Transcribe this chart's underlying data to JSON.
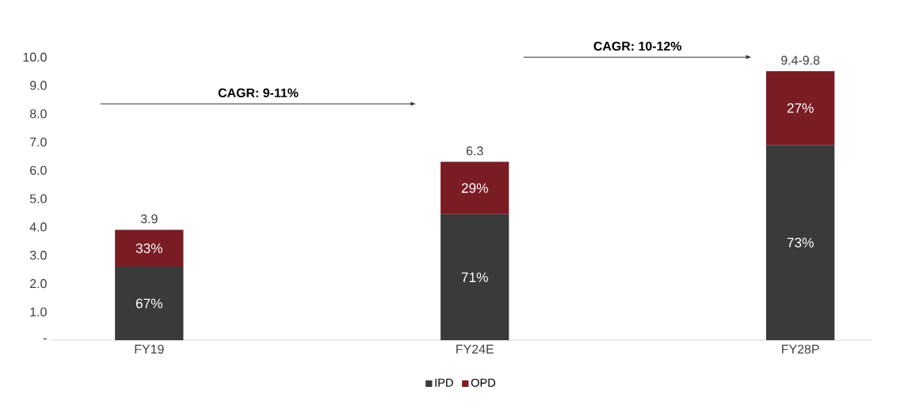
{
  "chart_data": {
    "type": "bar",
    "stacked": true,
    "categories": [
      "FY19",
      "FY24E",
      "FY28P"
    ],
    "series": [
      {
        "name": "IPD",
        "color": "#3a3a3a",
        "values": [
          2.6,
          4.45,
          6.9
        ]
      },
      {
        "name": "OPD",
        "color": "#7a1c24",
        "values": [
          1.3,
          1.85,
          2.6
        ]
      }
    ],
    "totals": [
      "3.9",
      "6.3",
      "9.4-9.8"
    ],
    "ylim": [
      0,
      10
    ],
    "yticks": [
      {
        "value": 0,
        "label": "-"
      },
      {
        "value": 1,
        "label": "1.0"
      },
      {
        "value": 2,
        "label": "2.0"
      },
      {
        "value": 3,
        "label": "3.0"
      },
      {
        "value": 4,
        "label": "4.0"
      },
      {
        "value": 5,
        "label": "5.0"
      },
      {
        "value": 6,
        "label": "6.0"
      },
      {
        "value": 7,
        "label": "7.0"
      },
      {
        "value": 8,
        "label": "8.0"
      },
      {
        "value": 9,
        "label": "9.0"
      },
      {
        "value": 10,
        "label": "10.0"
      }
    ],
    "annotations": [
      "CAGR: 9-11%",
      "CAGR: 10-12%",
      "67%",
      "33%",
      "71%",
      "29%",
      "73%",
      "27%"
    ],
    "legend": "bottom",
    "grid": false
  }
}
